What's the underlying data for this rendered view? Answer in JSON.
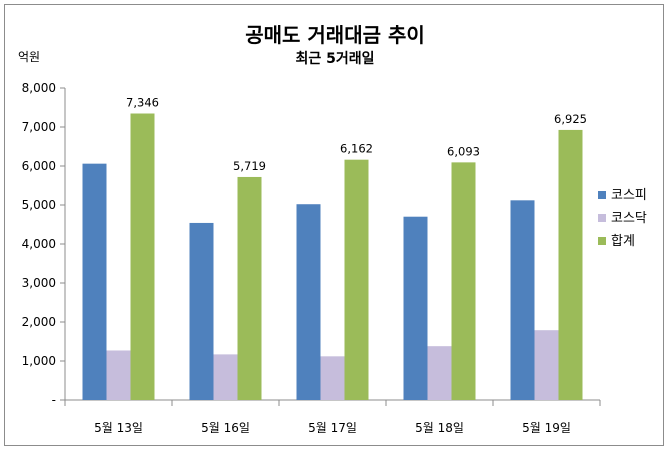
{
  "chart_data": {
    "type": "bar",
    "title": "공매도 거래대금 추이",
    "subtitle": "최근 5거래일",
    "ylabel": "억원",
    "xlabel": "",
    "ylim": [
      0,
      8000
    ],
    "ytick_step": 1000,
    "ytick_labels": [
      "-",
      "1,000",
      "2,000",
      "3,000",
      "4,000",
      "5,000",
      "6,000",
      "7,000",
      "8,000"
    ],
    "categories": [
      "5월 13일",
      "5월 16일",
      "5월 17일",
      "5월 18일",
      "5월 19일"
    ],
    "series": [
      {
        "name": "코스피",
        "color": "#4f81bd",
        "values": [
          6060,
          4540,
          5020,
          4700,
          5120
        ]
      },
      {
        "name": "코스닥",
        "color": "#c6bddc",
        "values": [
          1270,
          1170,
          1120,
          1380,
          1790
        ]
      },
      {
        "name": "합계",
        "color": "#9bbb59",
        "values": [
          7346,
          5719,
          6162,
          6093,
          6925
        ],
        "data_labels": [
          "7,346",
          "5,719",
          "6,162",
          "6,093",
          "6,925"
        ]
      }
    ],
    "legend_position": "right",
    "grid": false
  }
}
